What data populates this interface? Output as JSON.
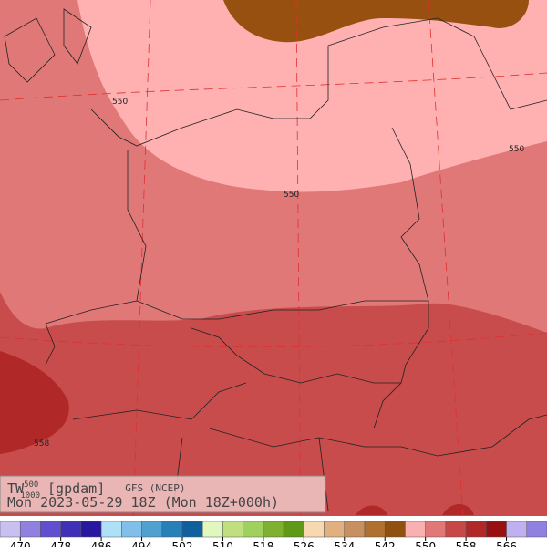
{
  "title": {
    "variable": "TW",
    "superscript": "500",
    "subscript": "1000",
    "unit": "[gpdam]",
    "model": "GFS (NCEP)"
  },
  "valid_time": "Mon 2023-05-29 18Z (Mon 18Z+000h)",
  "contour_labels": [
    "550",
    "550",
    "550",
    "558"
  ],
  "colorbar": {
    "colors": [
      "#c8c0f0",
      "#9080e0",
      "#6050d0",
      "#4030b8",
      "#2818a0",
      "#b0e0f8",
      "#80c0e8",
      "#50a0d0",
      "#2880b8",
      "#1060a0",
      "#e0f8c0",
      "#c0e080",
      "#a0d060",
      "#80b030",
      "#609818",
      "#f8d8b0",
      "#e0b080",
      "#c89060",
      "#b07030",
      "#905010",
      "#f8b0b0",
      "#e07878",
      "#c84848",
      "#b02828",
      "#981010",
      "#c0b0f0",
      "#9080e0"
    ],
    "labels": [
      470,
      478,
      486,
      494,
      502,
      510,
      518,
      526,
      534,
      542,
      550,
      558,
      566
    ]
  }
}
